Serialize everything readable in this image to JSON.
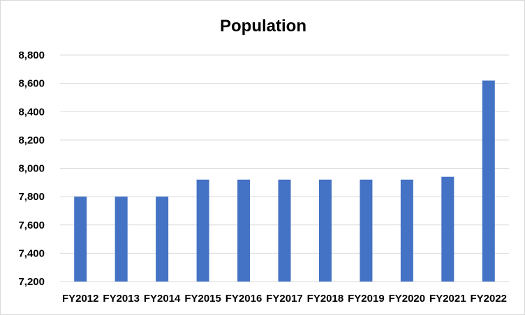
{
  "chart_data": {
    "type": "bar",
    "title": "Population",
    "xlabel": "",
    "ylabel": "",
    "categories": [
      "FY2012",
      "FY2013",
      "FY2014",
      "FY2015",
      "FY2016",
      "FY2017",
      "FY2018",
      "FY2019",
      "FY2020",
      "FY2021",
      "FY2022"
    ],
    "values": [
      7800,
      7800,
      7800,
      7920,
      7920,
      7920,
      7920,
      7920,
      7920,
      7940,
      8620
    ],
    "ylim": [
      7200,
      8800
    ],
    "yticks": [
      "7,200",
      "7,400",
      "7,600",
      "7,800",
      "8,000",
      "8,200",
      "8,400",
      "8,600",
      "8,800"
    ],
    "ytick_values": [
      7200,
      7400,
      7600,
      7800,
      8000,
      8200,
      8400,
      8600,
      8800
    ],
    "grid": true,
    "legend": "none",
    "bar_color": "#4472c4"
  }
}
